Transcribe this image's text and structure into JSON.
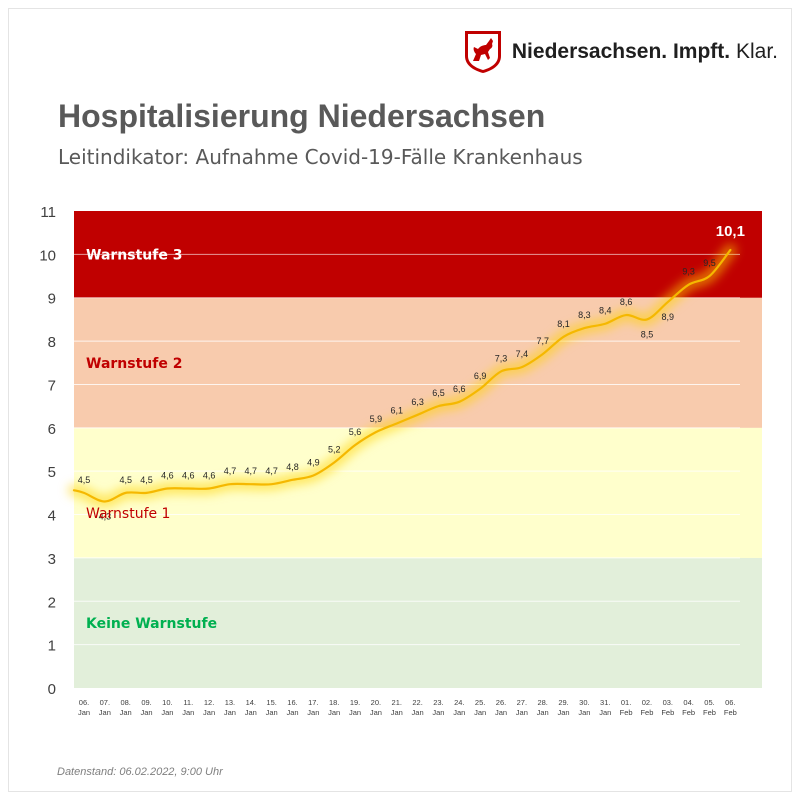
{
  "header": {
    "brand_bold": "Niedersachsen. Impft.",
    "brand_regular": "Klar.",
    "logo_icon": "lower-saxony-horse-crest-icon",
    "title": "Hospitalisierung Niedersachsen",
    "subtitle": "Leitindikator: Aufnahme Covid-19-Fälle Krankenhaus"
  },
  "footer": {
    "note": "Datenstand: 06.02.2022, 9:00 Uhr"
  },
  "colors": {
    "warnstufe3": "#c00000",
    "warnstufe2": "#f8cbad",
    "warnstufe1": "#ffffcc",
    "keine": "#e2efda",
    "line": "#f5b800",
    "glow": "#ffd400",
    "label_dark": "#c00000",
    "label_green": "#00b050"
  },
  "chart_data": {
    "type": "line",
    "ylim": [
      0,
      11
    ],
    "y_ticks": [
      0,
      1,
      2,
      3,
      4,
      5,
      6,
      7,
      8,
      9,
      10,
      11
    ],
    "grid": "horizontal",
    "bands": [
      {
        "label": "Keine Warnstufe",
        "from": 0,
        "to": 3
      },
      {
        "label": "Warnstufe 1",
        "from": 3,
        "to": 6
      },
      {
        "label": "Warnstufe 2",
        "from": 6,
        "to": 9
      },
      {
        "label": "Warnstufe 3",
        "from": 9,
        "to": 11
      }
    ],
    "categories": [
      [
        "06.",
        "Jan"
      ],
      [
        "07.",
        "Jan"
      ],
      [
        "08.",
        "Jan"
      ],
      [
        "09.",
        "Jan"
      ],
      [
        "10.",
        "Jan"
      ],
      [
        "11.",
        "Jan"
      ],
      [
        "12.",
        "Jan"
      ],
      [
        "13.",
        "Jan"
      ],
      [
        "14.",
        "Jan"
      ],
      [
        "15.",
        "Jan"
      ],
      [
        "16.",
        "Jan"
      ],
      [
        "17.",
        "Jan"
      ],
      [
        "18.",
        "Jan"
      ],
      [
        "19.",
        "Jan"
      ],
      [
        "20.",
        "Jan"
      ],
      [
        "21.",
        "Jan"
      ],
      [
        "22.",
        "Jan"
      ],
      [
        "23.",
        "Jan"
      ],
      [
        "24.",
        "Jan"
      ],
      [
        "25.",
        "Jan"
      ],
      [
        "26.",
        "Jan"
      ],
      [
        "27.",
        "Jan"
      ],
      [
        "28.",
        "Jan"
      ],
      [
        "29.",
        "Jan"
      ],
      [
        "30.",
        "Jan"
      ],
      [
        "31.",
        "Jan"
      ],
      [
        "01.",
        "Feb"
      ],
      [
        "02.",
        "Feb"
      ],
      [
        "03.",
        "Feb"
      ],
      [
        "04.",
        "Feb"
      ],
      [
        "05.",
        "Feb"
      ],
      [
        "06.",
        "Feb"
      ]
    ],
    "values": [
      4.5,
      4.3,
      4.5,
      4.5,
      4.6,
      4.6,
      4.6,
      4.7,
      4.7,
      4.7,
      4.8,
      4.9,
      5.2,
      5.6,
      5.9,
      6.1,
      6.3,
      6.5,
      6.6,
      6.9,
      7.3,
      7.4,
      7.7,
      8.1,
      8.3,
      8.4,
      8.6,
      8.5,
      8.9,
      9.3,
      9.5,
      10.1
    ],
    "data_labels": [
      "4,5",
      "4,3",
      "4,5",
      "4,5",
      "4,6",
      "4,6",
      "4,6",
      "4,7",
      "4,7",
      "4,7",
      "4,8",
      "4,9",
      "5,2",
      "5,6",
      "5,9",
      "6,1",
      "6,3",
      "6,5",
      "6,6",
      "6,9",
      "7,3",
      "7,4",
      "7,7",
      "8,1",
      "8,3",
      "8,4",
      "8,6",
      "8,5",
      "8,9",
      "9,3",
      "9,5",
      "10,1"
    ],
    "label_below": [
      false,
      true,
      false,
      false,
      false,
      false,
      false,
      false,
      false,
      false,
      false,
      false,
      false,
      false,
      false,
      false,
      false,
      false,
      false,
      false,
      false,
      false,
      false,
      false,
      false,
      false,
      false,
      true,
      true,
      false,
      false,
      false
    ],
    "first_value_offscale_left": 4.56
  }
}
